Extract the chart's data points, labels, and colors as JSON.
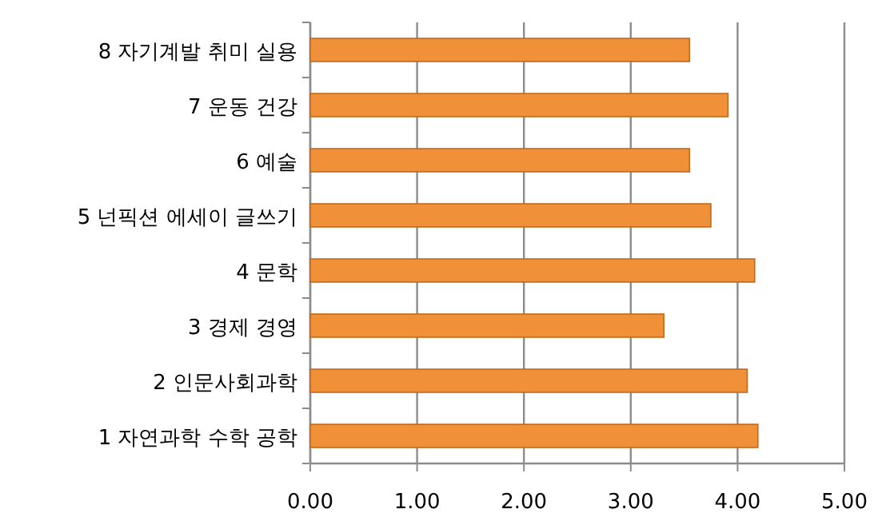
{
  "chart_data": {
    "type": "bar",
    "orientation": "horizontal",
    "categories": [
      "8 자기계발 취미 실용",
      "7 운동 건강",
      "6 예술",
      "5 넌픽션 에세이 글쓰기",
      "4 문학",
      "3 경제 경영",
      "2 인문사회과학",
      "1 자연과학 수학 공학"
    ],
    "values": [
      3.55,
      3.91,
      3.55,
      3.75,
      4.16,
      3.31,
      4.09,
      4.19
    ],
    "color": "#f0913a",
    "xlim": [
      0,
      5
    ],
    "xticks": [
      {
        "value": 0,
        "label": "0.00"
      },
      {
        "value": 1,
        "label": "1.00"
      },
      {
        "value": 2,
        "label": "2.00"
      },
      {
        "value": 3,
        "label": "3.00"
      },
      {
        "value": 4,
        "label": "4.00"
      },
      {
        "value": 5,
        "label": "5.00"
      }
    ],
    "grid": "x"
  }
}
